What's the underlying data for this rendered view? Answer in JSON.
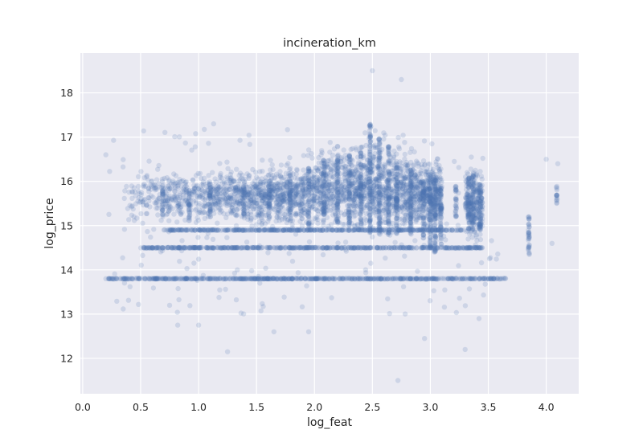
{
  "chart_data": {
    "type": "scatter",
    "title": "incineration_km",
    "xlabel": "log_feat",
    "ylabel": "log_price",
    "xlim": [
      -0.02,
      4.28
    ],
    "ylim": [
      11.2,
      18.9
    ],
    "xticks": [
      0.0,
      0.5,
      1.0,
      1.5,
      2.0,
      2.5,
      3.0,
      3.5,
      4.0
    ],
    "xtick_labels": [
      "0.0",
      "0.5",
      "1.0",
      "1.5",
      "2.0",
      "2.5",
      "3.0",
      "3.5",
      "4.0"
    ],
    "yticks": [
      12,
      13,
      14,
      15,
      16,
      17,
      18
    ],
    "ytick_labels": [
      "12",
      "13",
      "14",
      "15",
      "16",
      "17",
      "18"
    ],
    "grid": true,
    "marker_color": "#4c72b0",
    "marker_alpha": 0.2,
    "background_color": "#eaeaf2",
    "series": [
      {
        "points_summary": "dense cloud centered near log_feat 2.0-2.8, log_price 15.0-16.5",
        "bands": [
          {
            "y": 13.8,
            "x_range": [
              0.2,
              3.65
            ]
          },
          {
            "y": 14.5,
            "x_range": [
              0.5,
              3.45
            ]
          },
          {
            "y": 14.9,
            "x_range": [
              0.7,
              3.3
            ]
          }
        ],
        "columns": [
          {
            "x": 0.69,
            "y_range": [
              15.2,
              15.8
            ]
          },
          {
            "x": 0.92,
            "y_range": [
              15.1,
              15.8
            ]
          },
          {
            "x": 1.1,
            "y_range": [
              15.2,
              16.0
            ]
          },
          {
            "x": 1.39,
            "y_range": [
              15.1,
              15.9
            ]
          },
          {
            "x": 1.61,
            "y_range": [
              15.1,
              16.0
            ]
          },
          {
            "x": 1.79,
            "y_range": [
              15.1,
              16.2
            ]
          },
          {
            "x": 1.95,
            "y_range": [
              15.0,
              16.3
            ]
          },
          {
            "x": 2.08,
            "y_range": [
              15.0,
              16.5
            ]
          },
          {
            "x": 2.2,
            "y_range": [
              15.0,
              16.6
            ]
          },
          {
            "x": 2.3,
            "y_range": [
              15.0,
              16.6
            ]
          },
          {
            "x": 2.4,
            "y_range": [
              15.0,
              16.8
            ]
          },
          {
            "x": 2.48,
            "y_range": [
              14.8,
              17.3
            ]
          },
          {
            "x": 2.56,
            "y_range": [
              14.8,
              17.0
            ]
          },
          {
            "x": 2.64,
            "y_range": [
              14.8,
              16.8
            ]
          },
          {
            "x": 2.71,
            "y_range": [
              14.8,
              16.5
            ]
          },
          {
            "x": 2.83,
            "y_range": [
              14.8,
              16.3
            ]
          },
          {
            "x": 2.94,
            "y_range": [
              14.7,
              16.0
            ]
          },
          {
            "x": 3.0,
            "y_range": [
              14.5,
              16.2
            ]
          },
          {
            "x": 3.04,
            "y_range": [
              14.4,
              16.1
            ]
          },
          {
            "x": 3.09,
            "y_range": [
              14.5,
              15.9
            ]
          },
          {
            "x": 3.22,
            "y_range": [
              15.2,
              15.9
            ]
          },
          {
            "x": 3.33,
            "y_range": [
              14.9,
              16.1
            ]
          },
          {
            "x": 3.37,
            "y_range": [
              15.0,
              16.2
            ]
          },
          {
            "x": 3.43,
            "y_range": [
              14.9,
              16.0
            ]
          },
          {
            "x": 3.85,
            "y_range": [
              14.3,
              15.2
            ]
          },
          {
            "x": 4.09,
            "y_range": [
              15.5,
              15.9
            ]
          }
        ],
        "outliers": [
          {
            "x": 0.2,
            "y": 16.6
          },
          {
            "x": 0.2,
            "y": 13.8
          },
          {
            "x": 1.25,
            "y": 12.15
          },
          {
            "x": 1.65,
            "y": 12.6
          },
          {
            "x": 1.95,
            "y": 12.6
          },
          {
            "x": 2.72,
            "y": 11.5
          },
          {
            "x": 2.95,
            "y": 12.45
          },
          {
            "x": 3.3,
            "y": 12.2
          },
          {
            "x": 2.5,
            "y": 18.5
          },
          {
            "x": 2.75,
            "y": 18.3
          },
          {
            "x": 1.13,
            "y": 17.3
          },
          {
            "x": 4.0,
            "y": 16.5
          },
          {
            "x": 4.1,
            "y": 16.4
          },
          {
            "x": 4.05,
            "y": 14.6
          },
          {
            "x": 0.82,
            "y": 12.75
          },
          {
            "x": 1.0,
            "y": 12.75
          },
          {
            "x": 0.75,
            "y": 13.2
          },
          {
            "x": 3.42,
            "y": 12.9
          }
        ]
      }
    ]
  }
}
